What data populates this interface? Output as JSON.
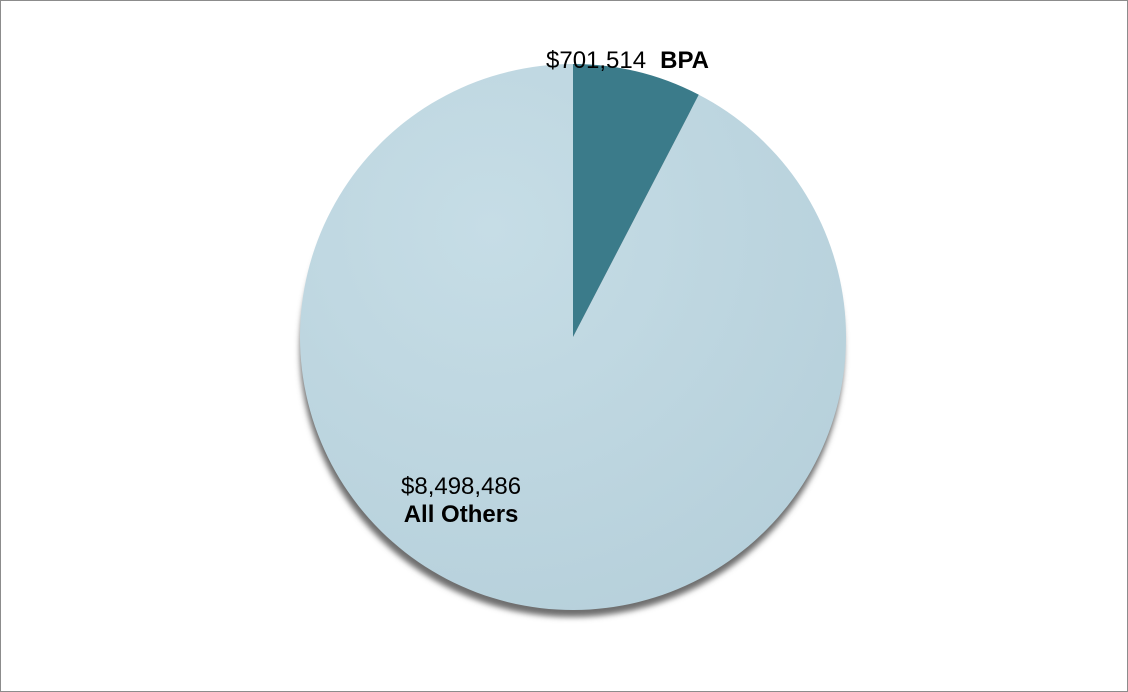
{
  "chart_data": {
    "type": "pie",
    "slices": [
      {
        "name": "BPA",
        "value": 701514,
        "value_label": "$701,514",
        "color": "#3b7b8a"
      },
      {
        "name": "All Others",
        "value": 8498486,
        "value_label": "$8,498,486",
        "color": "#bdd6e0"
      }
    ],
    "start_angle_deg": 0,
    "direction": "clockwise",
    "legend": "none"
  }
}
